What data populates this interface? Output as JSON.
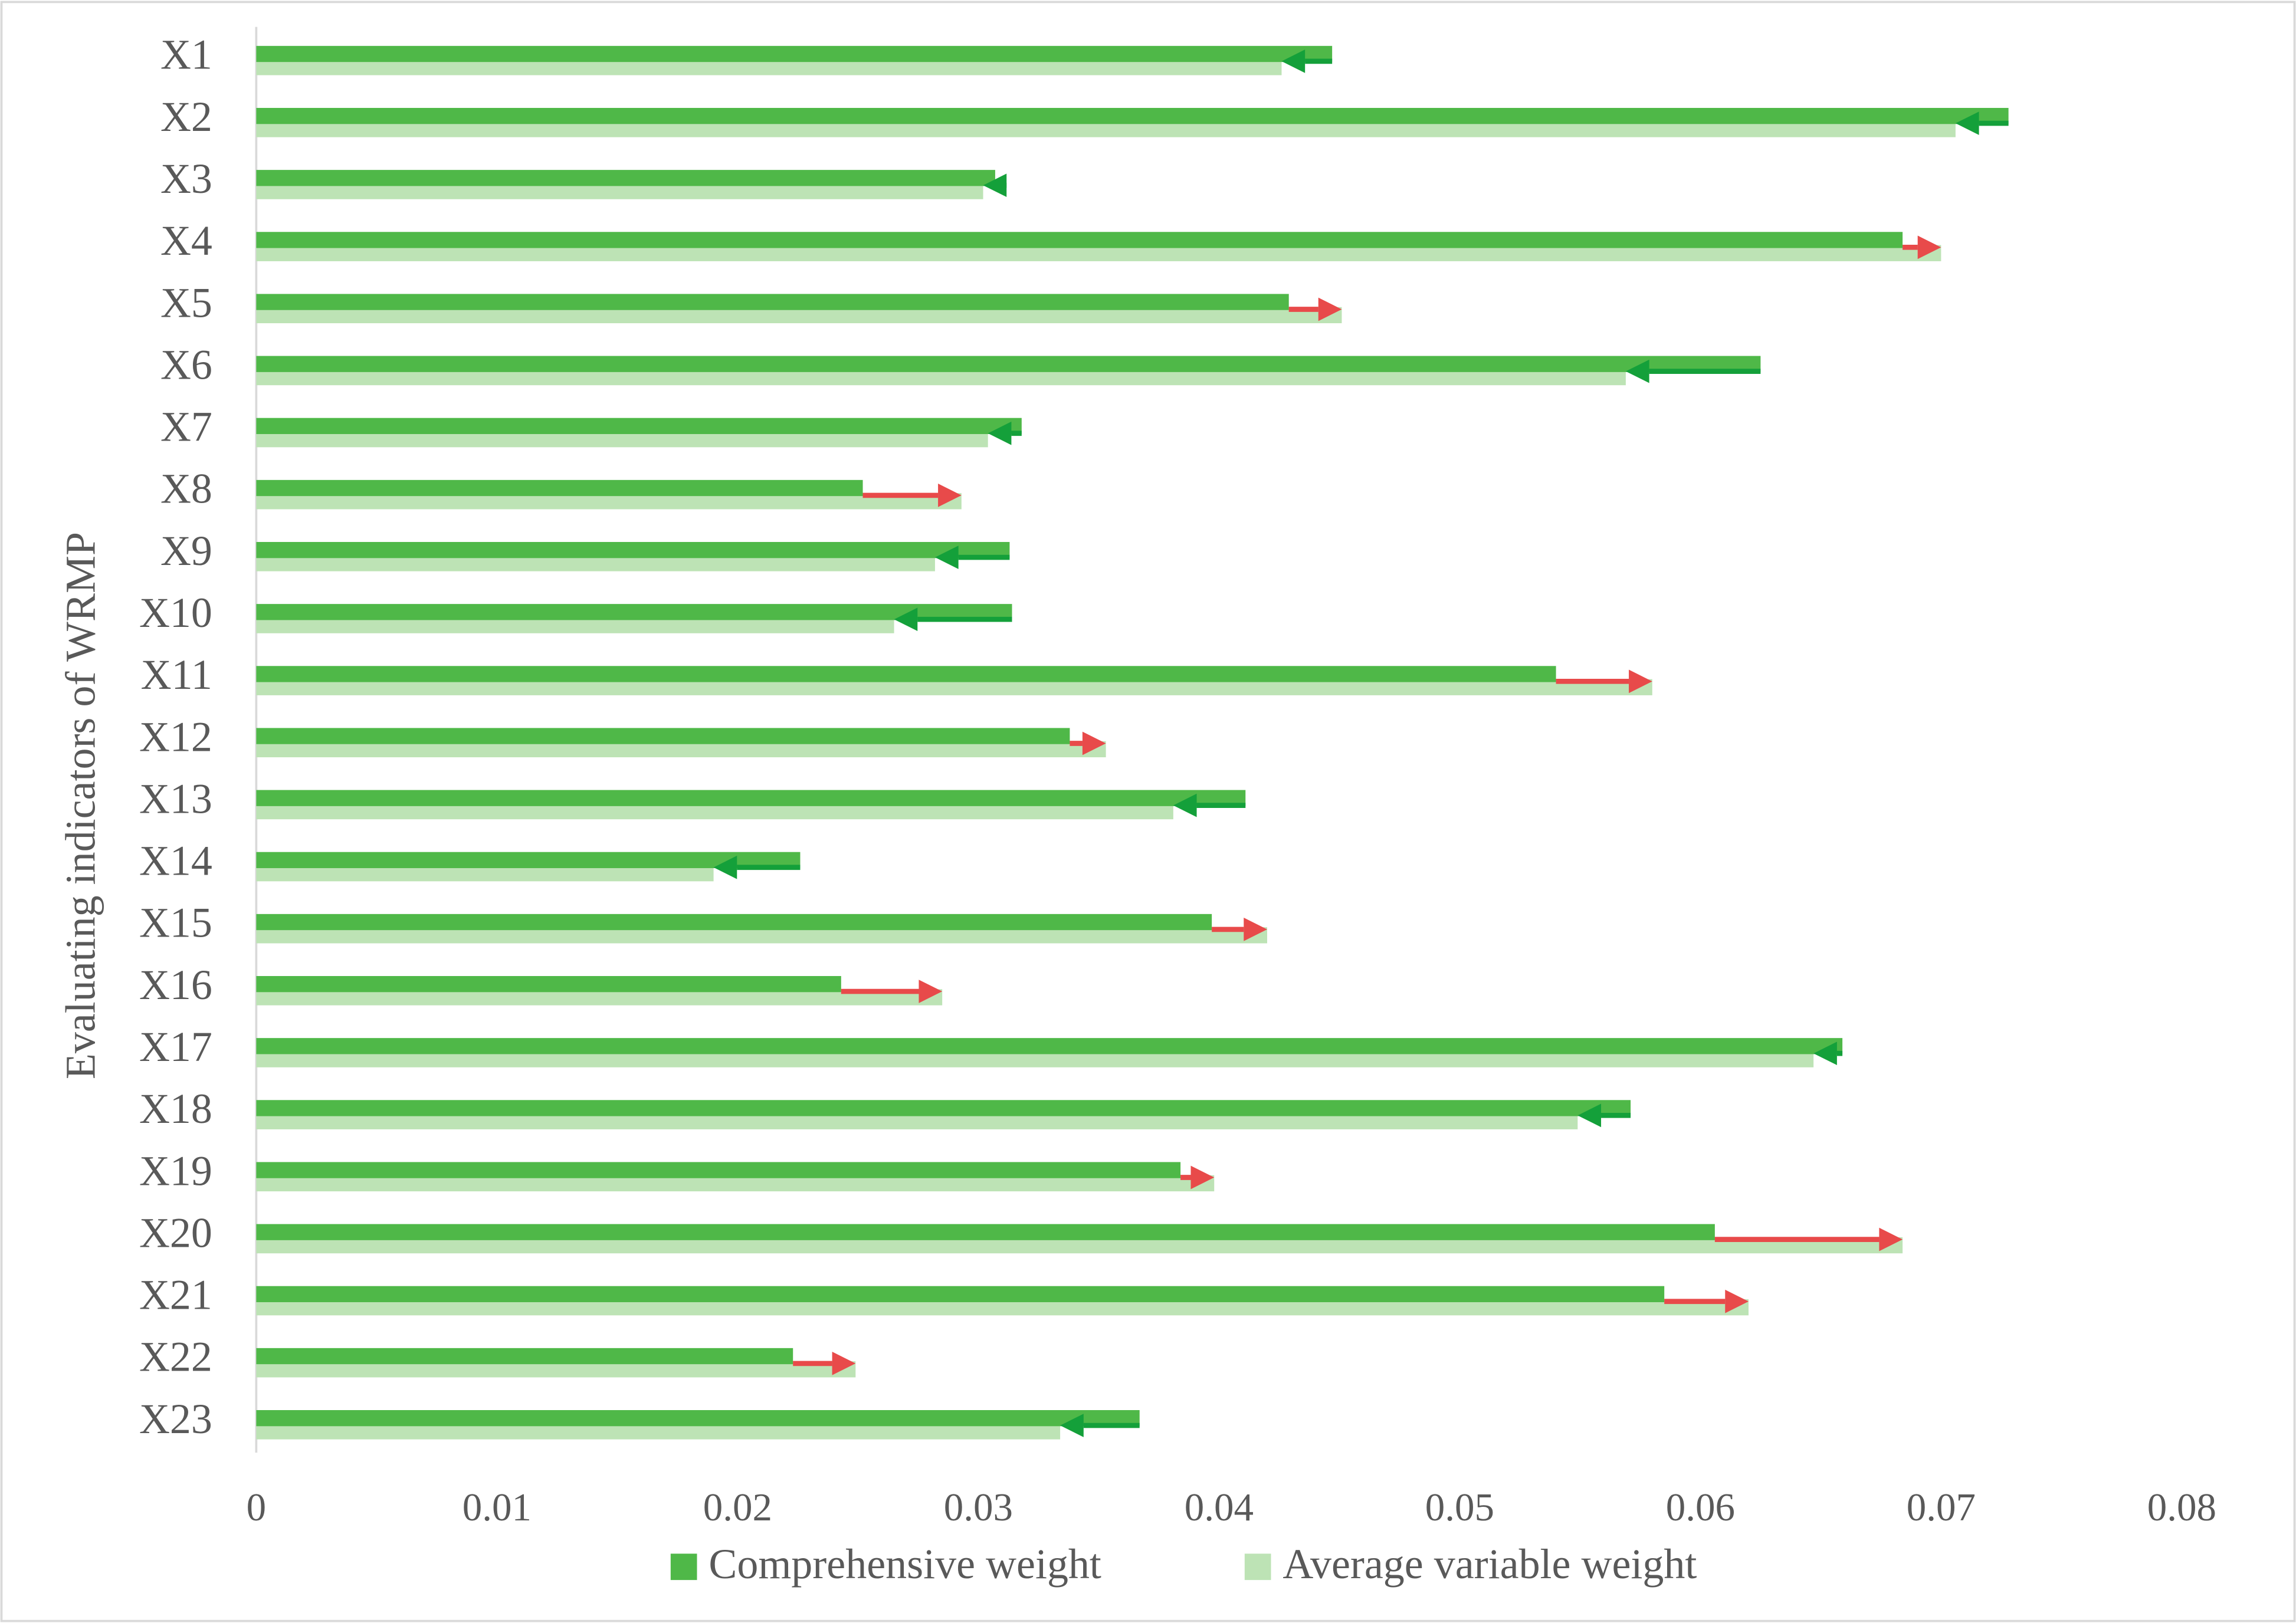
{
  "chart_data": {
    "type": "bar",
    "y_label": "Evaluating indicators of WRMP",
    "categories": [
      "X1",
      "X2",
      "X3",
      "X4",
      "X5",
      "X6",
      "X7",
      "X8",
      "X9",
      "X10",
      "X11",
      "X12",
      "X13",
      "X14",
      "X15",
      "X16",
      "X17",
      "X18",
      "X19",
      "X20",
      "X21",
      "X22",
      "X23"
    ],
    "series": [
      {
        "name": "Comprehensive weight",
        "color": "#4fb848",
        "values": [
          0.0447,
          0.0728,
          0.0307,
          0.0684,
          0.0429,
          0.0625,
          0.0318,
          0.0252,
          0.0313,
          0.0314,
          0.054,
          0.0338,
          0.0411,
          0.0226,
          0.0397,
          0.0243,
          0.0659,
          0.0571,
          0.0384,
          0.0606,
          0.0585,
          0.0223,
          0.0367
        ]
      },
      {
        "name": "Average variable weight",
        "color": "#bde3b5",
        "values": [
          0.0426,
          0.0706,
          0.0302,
          0.07,
          0.0451,
          0.0569,
          0.0304,
          0.0293,
          0.0282,
          0.0265,
          0.058,
          0.0353,
          0.0381,
          0.019,
          0.042,
          0.0285,
          0.0647,
          0.0549,
          0.0398,
          0.0684,
          0.062,
          0.0249,
          0.0334
        ]
      }
    ],
    "arrow_colors": {
      "increase": "#e84a4a",
      "decrease": "#14a03a"
    },
    "xlim": [
      0,
      0.08
    ],
    "xticks": [
      0,
      0.01,
      0.02,
      0.03,
      0.04,
      0.05,
      0.06,
      0.07,
      0.08
    ]
  }
}
